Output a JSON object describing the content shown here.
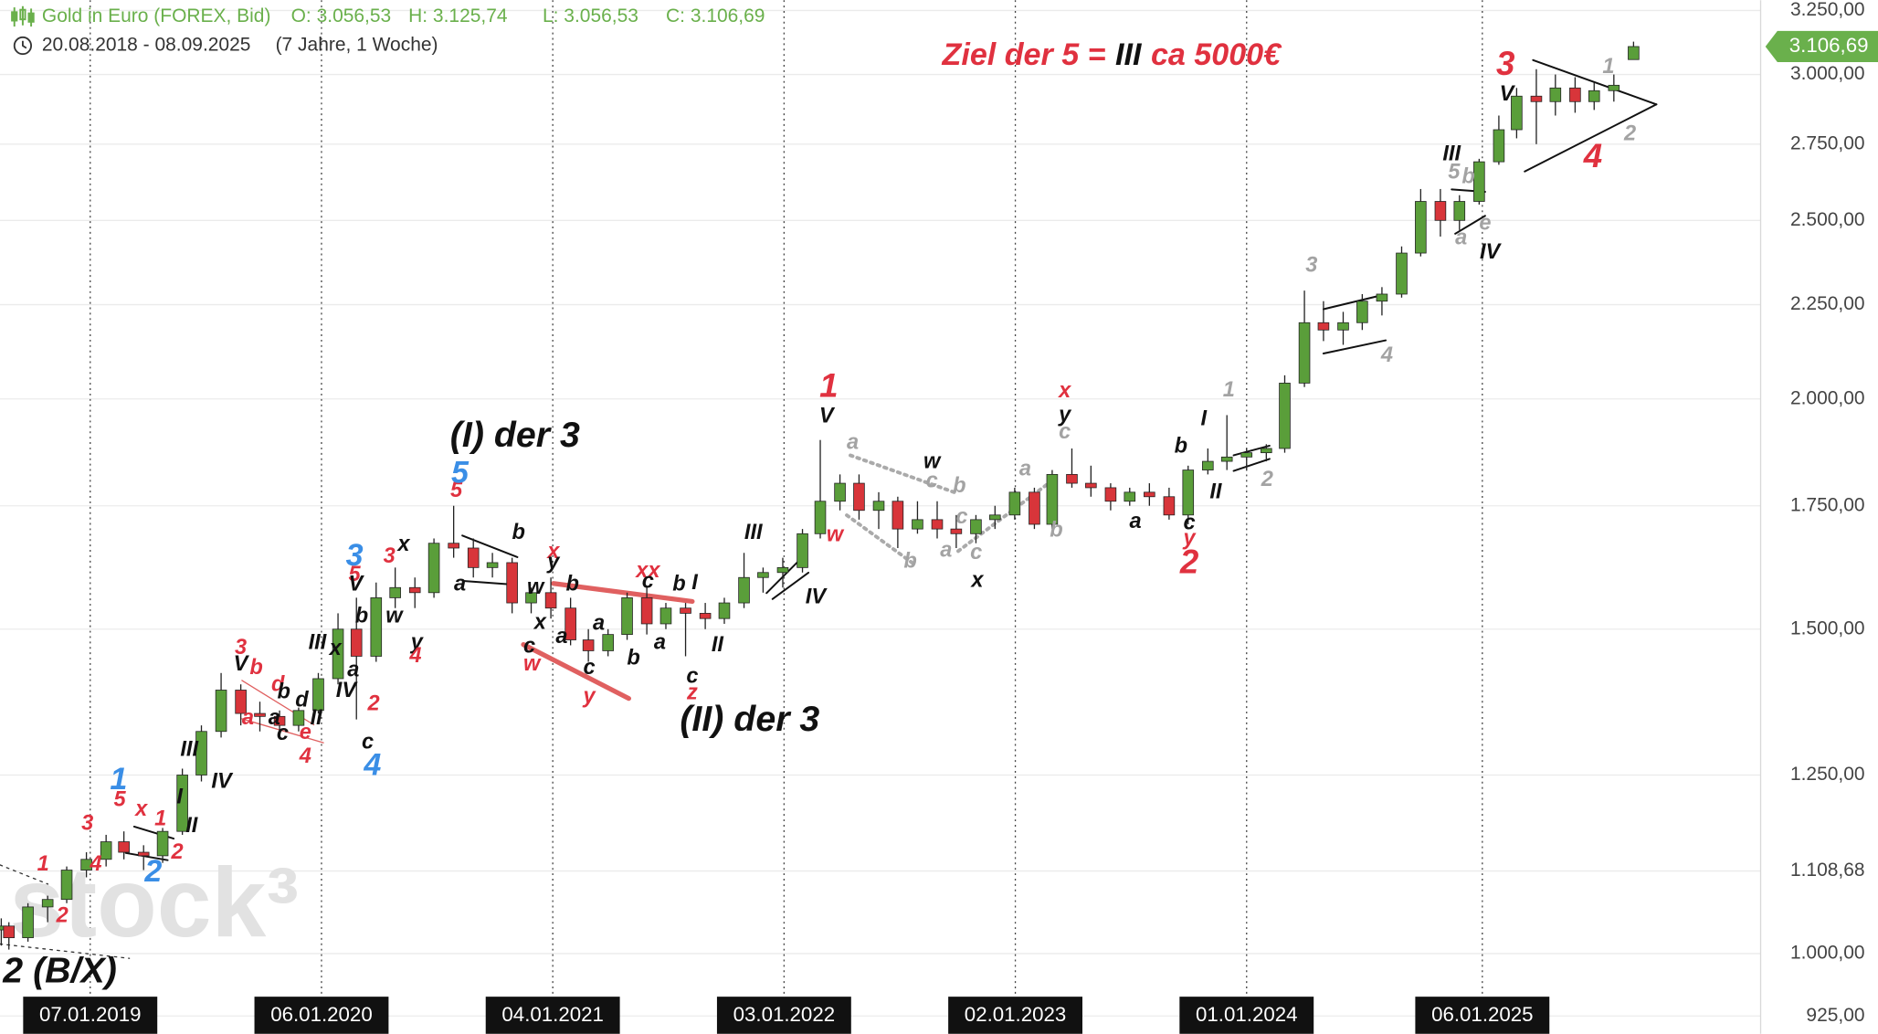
{
  "chart_data": {
    "type": "candlestick",
    "title": "Gold in Euro (FOREX, Bid)",
    "ohlc_labels": [
      "O: 3.056,53",
      "H: 3.125,74",
      "L: 3.056,53",
      "C: 3.106,69"
    ],
    "range": "20.08.2018 - 08.09.2025",
    "range_note": "(7 Jahre, 1 Woche)",
    "watermark": "stock³",
    "log_scale": true,
    "grid": true,
    "up_color": "#5a9e3a",
    "down_color": "#d8353a",
    "palette": {
      "red": "#e0313f",
      "black": "#111111",
      "blue": "#3a8ee6",
      "gray": "#a3a3a3"
    },
    "last_price": {
      "value": 3106.69,
      "label": "3.106,69"
    },
    "xlim": [
      "2018-08-18",
      "2026-03-20"
    ],
    "ylim": [
      904.6,
      3292
    ],
    "xticks": [
      {
        "value": "2019-01-07",
        "label": "07.01.2019"
      },
      {
        "value": "2020-01-06",
        "label": "06.01.2020"
      },
      {
        "value": "2021-01-04",
        "label": "04.01.2021"
      },
      {
        "value": "2022-01-03",
        "label": "03.01.2022"
      },
      {
        "value": "2023-01-02",
        "label": "02.01.2023"
      },
      {
        "value": "2024-01-01",
        "label": "01.01.2024"
      },
      {
        "value": "2025-01-06",
        "label": "06.01.2025"
      }
    ],
    "yticks": [
      {
        "value": 925,
        "label": "925,00"
      },
      {
        "value": 1000,
        "label": "1.000,00"
      },
      {
        "value": 1108.68,
        "label": "1.108,68"
      },
      {
        "value": 1250,
        "label": "1.250,00"
      },
      {
        "value": 1500,
        "label": "1.500,00"
      },
      {
        "value": 1750,
        "label": "1.750,00"
      },
      {
        "value": 2000,
        "label": "2.000,00"
      },
      {
        "value": 2250,
        "label": "2.250,00"
      },
      {
        "value": 2500,
        "label": "2.500,00"
      },
      {
        "value": 2750,
        "label": "2.750,00"
      },
      {
        "value": 3000,
        "label": "3.000,00"
      },
      {
        "value": 3250,
        "label": "3.250,00"
      }
    ],
    "ohlc": {
      "x": [
        "2018-08-20",
        "2018-09-01",
        "2018-10-01",
        "2018-11-01",
        "2018-12-01",
        "2019-01-01",
        "2019-02-01",
        "2019-03-01",
        "2019-04-01",
        "2019-05-01",
        "2019-06-01",
        "2019-07-01",
        "2019-08-01",
        "2019-09-01",
        "2019-10-01",
        "2019-11-01",
        "2019-12-01",
        "2020-01-01",
        "2020-02-01",
        "2020-03-01",
        "2020-04-01",
        "2020-05-01",
        "2020-06-01",
        "2020-07-01",
        "2020-08-01",
        "2020-09-01",
        "2020-10-01",
        "2020-11-01",
        "2020-12-01",
        "2021-01-01",
        "2021-02-01",
        "2021-03-01",
        "2021-04-01",
        "2021-05-01",
        "2021-06-01",
        "2021-07-01",
        "2021-08-01",
        "2021-09-01",
        "2021-10-01",
        "2021-11-01",
        "2021-12-01",
        "2022-01-01",
        "2022-02-01",
        "2022-03-01",
        "2022-04-01",
        "2022-05-01",
        "2022-06-01",
        "2022-07-01",
        "2022-08-01",
        "2022-09-01",
        "2022-10-01",
        "2022-11-01",
        "2022-12-01",
        "2023-01-01",
        "2023-02-01",
        "2023-03-01",
        "2023-04-01",
        "2023-05-01",
        "2023-06-01",
        "2023-07-01",
        "2023-08-01",
        "2023-09-01",
        "2023-10-01",
        "2023-11-01",
        "2023-12-01",
        "2024-01-01",
        "2024-02-01",
        "2024-03-01",
        "2024-04-01",
        "2024-05-01",
        "2024-06-01",
        "2024-07-01",
        "2024-08-01",
        "2024-09-01",
        "2024-10-01",
        "2024-11-01",
        "2024-12-01",
        "2025-01-01",
        "2025-02-01",
        "2025-03-01",
        "2025-04-01",
        "2025-05-01",
        "2025-06-01",
        "2025-07-01",
        "2025-08-01",
        "2025-09-01"
      ],
      "open": [
        1030,
        1035,
        1020,
        1060,
        1070,
        1110,
        1125,
        1150,
        1135,
        1130,
        1165,
        1250,
        1320,
        1390,
        1350,
        1345,
        1330,
        1355,
        1410,
        1500,
        1450,
        1560,
        1580,
        1570,
        1670,
        1660,
        1620,
        1630,
        1550,
        1570,
        1540,
        1480,
        1460,
        1490,
        1560,
        1510,
        1540,
        1530,
        1520,
        1550,
        1600,
        1610,
        1620,
        1690,
        1760,
        1800,
        1740,
        1760,
        1700,
        1720,
        1700,
        1690,
        1720,
        1730,
        1780,
        1710,
        1820,
        1800,
        1790,
        1760,
        1780,
        1770,
        1730,
        1830,
        1850,
        1860,
        1870,
        1880,
        2040,
        2200,
        2180,
        2200,
        2260,
        2280,
        2400,
        2560,
        2500,
        2560,
        2690,
        2800,
        2920,
        2900,
        2950,
        2900,
        2940,
        3056.53
      ],
      "high": [
        1045,
        1040,
        1065,
        1075,
        1115,
        1135,
        1160,
        1165,
        1145,
        1170,
        1260,
        1330,
        1420,
        1400,
        1370,
        1355,
        1360,
        1420,
        1530,
        1560,
        1590,
        1620,
        1600,
        1680,
        1750,
        1680,
        1650,
        1640,
        1580,
        1600,
        1560,
        1500,
        1500,
        1570,
        1580,
        1550,
        1550,
        1550,
        1560,
        1650,
        1620,
        1640,
        1700,
        1900,
        1820,
        1820,
        1780,
        1770,
        1760,
        1760,
        1730,
        1730,
        1750,
        1790,
        1790,
        1830,
        1880,
        1840,
        1800,
        1790,
        1800,
        1790,
        1840,
        1880,
        1960,
        1880,
        1890,
        2060,
        2290,
        2260,
        2230,
        2280,
        2300,
        2420,
        2600,
        2600,
        2580,
        2700,
        2850,
        2950,
        3020,
        3000,
        2990,
        2970,
        3000,
        3125.74
      ],
      "low": [
        1010,
        1005,
        1015,
        1040,
        1065,
        1100,
        1115,
        1125,
        1110,
        1120,
        1160,
        1240,
        1310,
        1330,
        1320,
        1310,
        1320,
        1350,
        1400,
        1340,
        1440,
        1540,
        1540,
        1560,
        1640,
        1600,
        1600,
        1530,
        1530,
        1520,
        1470,
        1440,
        1450,
        1480,
        1490,
        1500,
        1450,
        1500,
        1510,
        1540,
        1570,
        1580,
        1610,
        1680,
        1740,
        1720,
        1700,
        1660,
        1690,
        1680,
        1660,
        1670,
        1700,
        1720,
        1700,
        1700,
        1790,
        1770,
        1740,
        1750,
        1750,
        1720,
        1710,
        1820,
        1830,
        1830,
        1850,
        1870,
        2030,
        2150,
        2140,
        2180,
        2220,
        2270,
        2390,
        2450,
        2470,
        2550,
        2680,
        2770,
        2750,
        2850,
        2860,
        2870,
        2900,
        3056.53
      ],
      "close": [
        1035,
        1020,
        1060,
        1070,
        1110,
        1125,
        1150,
        1135,
        1130,
        1165,
        1250,
        1320,
        1390,
        1350,
        1345,
        1330,
        1355,
        1410,
        1500,
        1450,
        1560,
        1580,
        1570,
        1670,
        1660,
        1620,
        1630,
        1550,
        1570,
        1540,
        1480,
        1460,
        1490,
        1560,
        1510,
        1540,
        1530,
        1520,
        1550,
        1600,
        1610,
        1620,
        1690,
        1760,
        1800,
        1740,
        1760,
        1700,
        1720,
        1700,
        1690,
        1720,
        1730,
        1780,
        1710,
        1820,
        1800,
        1790,
        1760,
        1780,
        1770,
        1730,
        1830,
        1850,
        1860,
        1870,
        1880,
        2040,
        2200,
        2180,
        2200,
        2260,
        2280,
        2400,
        2560,
        2500,
        2560,
        2690,
        2800,
        2920,
        2900,
        2950,
        2900,
        2940,
        2960,
        3106.69
      ]
    },
    "headline": [
      {
        "text": "Ziel der 5 =",
        "color": "red"
      },
      {
        "text": "III",
        "color": "black"
      },
      {
        "text": "ca 5000€",
        "color": "red"
      }
    ],
    "annotations": [
      {
        "text": "1",
        "color": "blue"
      },
      {
        "text": "5",
        "color": "red"
      },
      {
        "text": "3",
        "color": "red"
      },
      {
        "text": "1",
        "color": "red"
      },
      {
        "text": "4",
        "color": "red"
      },
      {
        "text": "2",
        "color": "red"
      },
      {
        "text": "x",
        "color": "red"
      },
      {
        "text": "1",
        "color": "red"
      },
      {
        "text": "2",
        "color": "red"
      },
      {
        "text": "2",
        "color": "blue"
      },
      {
        "text": "I",
        "color": "black"
      },
      {
        "text": "II",
        "color": "black"
      },
      {
        "text": "III",
        "color": "black"
      },
      {
        "text": "IV",
        "color": "black"
      },
      {
        "text": "3",
        "color": "red"
      },
      {
        "text": "V",
        "color": "black"
      },
      {
        "text": "b",
        "color": "red"
      },
      {
        "text": "d",
        "color": "red"
      },
      {
        "text": "b",
        "color": "black"
      },
      {
        "text": "d",
        "color": "black"
      },
      {
        "text": "a",
        "color": "red"
      },
      {
        "text": "a",
        "color": "black"
      },
      {
        "text": "c",
        "color": "black"
      },
      {
        "text": "e",
        "color": "red"
      },
      {
        "text": "4",
        "color": "red"
      },
      {
        "text": "II",
        "color": "black"
      },
      {
        "text": "III",
        "color": "black"
      },
      {
        "text": "x",
        "color": "black"
      },
      {
        "text": "3",
        "color": "blue"
      },
      {
        "text": "5",
        "color": "red"
      },
      {
        "text": "V",
        "color": "black"
      },
      {
        "text": "a",
        "color": "black"
      },
      {
        "text": "IV",
        "color": "black"
      },
      {
        "text": "2",
        "color": "red"
      },
      {
        "text": "c",
        "color": "black"
      },
      {
        "text": "4",
        "color": "blue"
      },
      {
        "text": "b",
        "color": "black"
      },
      {
        "text": "w",
        "color": "black"
      },
      {
        "text": "3",
        "color": "red"
      },
      {
        "text": "x",
        "color": "black"
      },
      {
        "text": "y",
        "color": "black"
      },
      {
        "text": "4",
        "color": "red"
      },
      {
        "text": "5",
        "color": "red"
      },
      {
        "text": "5",
        "color": "blue"
      },
      {
        "text": "a",
        "color": "black"
      },
      {
        "text": "b",
        "color": "black"
      },
      {
        "text": "x",
        "color": "red"
      },
      {
        "text": "y",
        "color": "black"
      },
      {
        "text": "w",
        "color": "black"
      },
      {
        "text": "b",
        "color": "black"
      },
      {
        "text": "c",
        "color": "black"
      },
      {
        "text": "w",
        "color": "red"
      },
      {
        "text": "x",
        "color": "black"
      },
      {
        "text": "a",
        "color": "black"
      },
      {
        "text": "a",
        "color": "black"
      },
      {
        "text": "c",
        "color": "black"
      },
      {
        "text": "y",
        "color": "red"
      },
      {
        "text": "b",
        "color": "black"
      },
      {
        "text": "a",
        "color": "black"
      },
      {
        "text": "xx",
        "color": "red"
      },
      {
        "text": "c",
        "color": "black"
      },
      {
        "text": "b",
        "color": "black"
      },
      {
        "text": "I",
        "color": "black"
      },
      {
        "text": "II",
        "color": "black"
      },
      {
        "text": "c",
        "color": "black"
      },
      {
        "text": "z",
        "color": "red"
      },
      {
        "text": "III",
        "color": "black"
      },
      {
        "text": "IV",
        "color": "black"
      },
      {
        "text": "1",
        "color": "red"
      },
      {
        "text": "V",
        "color": "black"
      },
      {
        "text": "w",
        "color": "red"
      },
      {
        "text": "a",
        "color": "gray"
      },
      {
        "text": "w",
        "color": "black"
      },
      {
        "text": "c",
        "color": "gray"
      },
      {
        "text": "b",
        "color": "gray"
      },
      {
        "text": "c",
        "color": "gray"
      },
      {
        "text": "b",
        "color": "gray"
      },
      {
        "text": "a",
        "color": "gray"
      },
      {
        "text": "c",
        "color": "gray"
      },
      {
        "text": "x",
        "color": "black"
      },
      {
        "text": "a",
        "color": "gray"
      },
      {
        "text": "b",
        "color": "gray"
      },
      {
        "text": "x",
        "color": "red"
      },
      {
        "text": "y",
        "color": "black"
      },
      {
        "text": "c",
        "color": "gray"
      },
      {
        "text": "a",
        "color": "black"
      },
      {
        "text": "b",
        "color": "black"
      },
      {
        "text": "c",
        "color": "black"
      },
      {
        "text": "y",
        "color": "red"
      },
      {
        "text": "2",
        "color": "red"
      },
      {
        "text": "I",
        "color": "black"
      },
      {
        "text": "II",
        "color": "black"
      },
      {
        "text": "1",
        "color": "gray"
      },
      {
        "text": "2",
        "color": "gray"
      },
      {
        "text": "3",
        "color": "gray"
      },
      {
        "text": "4",
        "color": "gray"
      },
      {
        "text": "III",
        "color": "black"
      },
      {
        "text": "5",
        "color": "gray"
      },
      {
        "text": "b",
        "color": "gray"
      },
      {
        "text": "a",
        "color": "gray"
      },
      {
        "text": "e",
        "color": "gray"
      },
      {
        "text": "IV",
        "color": "black"
      },
      {
        "text": "3",
        "color": "red"
      },
      {
        "text": "V",
        "color": "black"
      },
      {
        "text": "1",
        "color": "gray"
      },
      {
        "text": "2",
        "color": "gray"
      },
      {
        "text": "4",
        "color": "red"
      },
      {
        "text": "(I) der 3",
        "color": "black"
      },
      {
        "text": "(II) der 3",
        "color": "black"
      },
      {
        "text": "2 (B/X)",
        "color": "black"
      }
    ]
  }
}
